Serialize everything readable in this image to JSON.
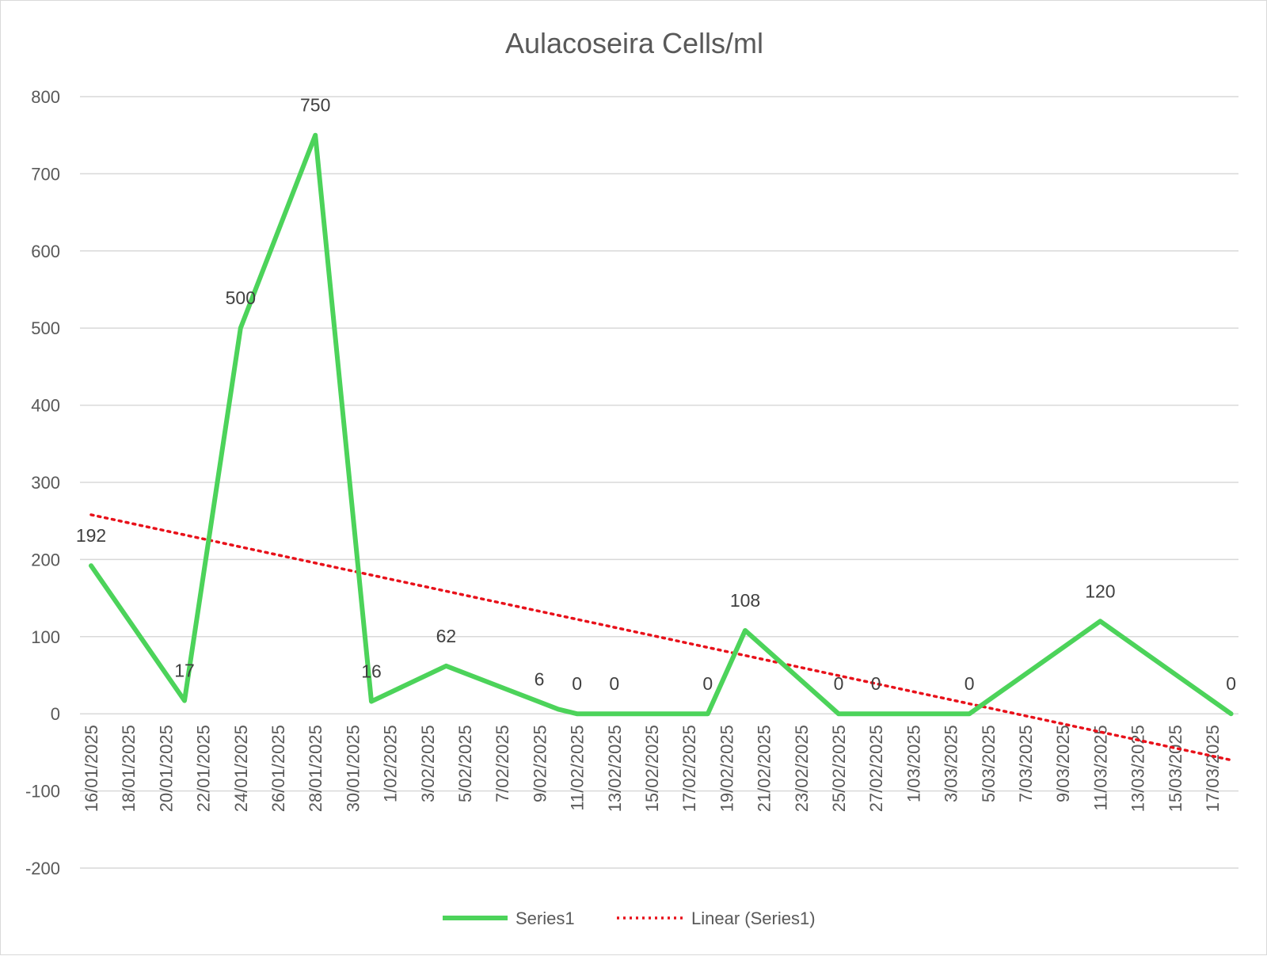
{
  "chart_data": {
    "type": "line",
    "title": "Aulacoseira Cells/ml",
    "xlabel": "",
    "ylabel": "",
    "ylim": [
      -200,
      800
    ],
    "yticks": [
      800,
      700,
      600,
      500,
      400,
      300,
      200,
      100,
      0,
      -100,
      -200
    ],
    "x_tick_labels": [
      "16/01/2025",
      "18/01/2025",
      "20/01/2025",
      "22/01/2025",
      "24/01/2025",
      "26/01/2025",
      "28/01/2025",
      "30/01/2025",
      "1/02/2025",
      "3/02/2025",
      "5/02/2025",
      "7/02/2025",
      "9/02/2025",
      "11/02/2025",
      "13/02/2025",
      "15/02/2025",
      "17/02/2025",
      "19/02/2025",
      "21/02/2025",
      "23/02/2025",
      "25/02/2025",
      "27/02/2025",
      "1/03/2025",
      "3/03/2025",
      "5/03/2025",
      "7/03/2025",
      "9/03/2025",
      "11/03/2025",
      "13/03/2025",
      "15/03/2025",
      "17/03/2025"
    ],
    "xrange": [
      "16/01/2025",
      "17/03/2025"
    ],
    "grid": true,
    "legend_position": "bottom",
    "series": [
      {
        "name": "Series1",
        "color": "#4cd35a",
        "points": [
          {
            "x": "16/01/2025",
            "y": 192,
            "label": "192"
          },
          {
            "x": "21/01/2025",
            "y": 17,
            "label": "17"
          },
          {
            "x": "24/01/2025",
            "y": 500,
            "label": "500"
          },
          {
            "x": "28/01/2025",
            "y": 750,
            "label": "750"
          },
          {
            "x": "31/01/2025",
            "y": 16,
            "label": "16"
          },
          {
            "x": "4/02/2025",
            "y": 62,
            "label": "62"
          },
          {
            "x": "10/02/2025",
            "y": 6,
            "label": "6"
          },
          {
            "x": "11/02/2025",
            "y": 0,
            "label": "0"
          },
          {
            "x": "13/02/2025",
            "y": 0,
            "label": "0"
          },
          {
            "x": "18/02/2025",
            "y": 0,
            "label": "0"
          },
          {
            "x": "20/02/2025",
            "y": 108,
            "label": "108"
          },
          {
            "x": "25/02/2025",
            "y": 0,
            "label": "0"
          },
          {
            "x": "27/02/2025",
            "y": 0,
            "label": "0"
          },
          {
            "x": "4/03/2025",
            "y": 0,
            "label": "0"
          },
          {
            "x": "11/03/2025",
            "y": 120,
            "label": "120"
          },
          {
            "x": "18/03/2025",
            "y": 0,
            "label": "0"
          }
        ]
      },
      {
        "name": "Linear (Series1)",
        "type": "trendline",
        "color": "#e8111a",
        "points": [
          {
            "x": "16/01/2025",
            "y": 258
          },
          {
            "x": "18/03/2025",
            "y": -60
          }
        ]
      }
    ]
  }
}
